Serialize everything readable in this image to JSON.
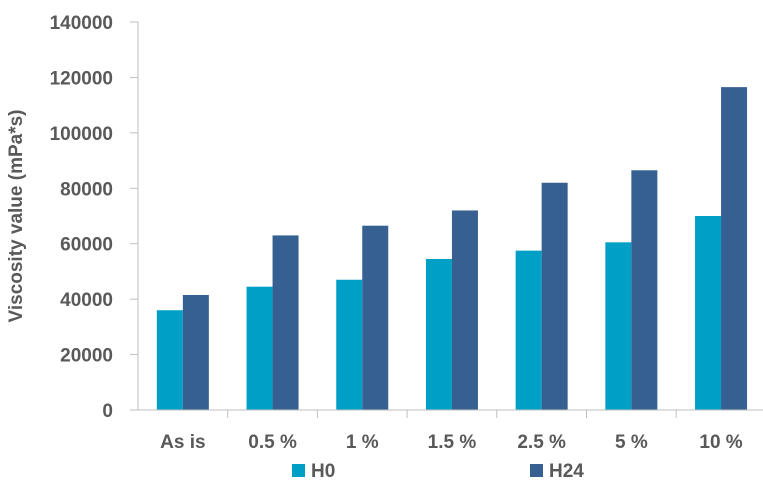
{
  "chart_data": {
    "type": "bar",
    "title": "",
    "xlabel": "",
    "ylabel": "Viscosity  value (mPa*s)",
    "ylim": [
      0,
      140000
    ],
    "yticks": [
      "0",
      "20000",
      "40000",
      "60000",
      "80000",
      "100000",
      "120000",
      "140000"
    ],
    "categories": [
      "As is",
      "0.5 %",
      "1 %",
      "1.5 %",
      "2.5 %",
      "5 %",
      "10 %"
    ],
    "series": [
      {
        "name": "H0",
        "color": "#00A0C6",
        "values": [
          36000,
          44500,
          47000,
          54500,
          57500,
          60500,
          70000
        ]
      },
      {
        "name": "H24",
        "color": "#366092",
        "values": [
          41500,
          63000,
          66500,
          72000,
          82000,
          86500,
          116500
        ]
      }
    ],
    "grid": false,
    "legend_position": "bottom"
  }
}
